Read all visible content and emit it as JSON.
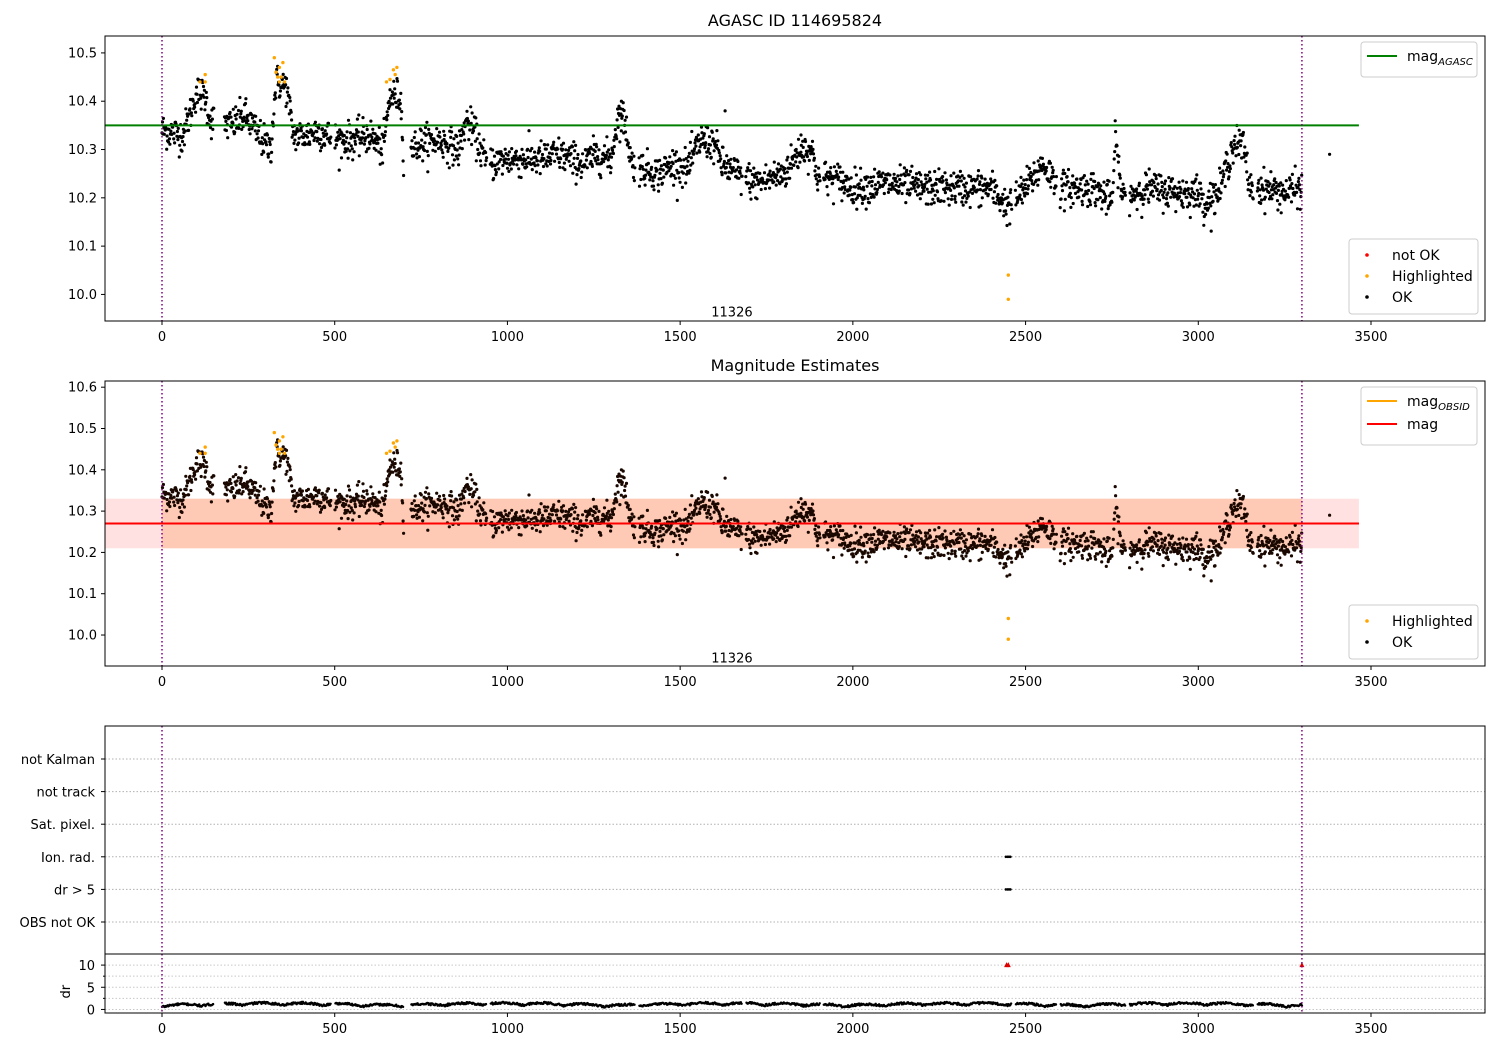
{
  "chart_data": [
    {
      "type": "scatter",
      "title": "AGASC ID 114695824",
      "xlim": [
        -165,
        3830
      ],
      "ylim": [
        9.945,
        10.535
      ],
      "xticks": [
        0,
        500,
        1000,
        1500,
        2000,
        2500,
        3000,
        3500
      ],
      "yticks": [
        10.0,
        10.1,
        10.2,
        10.3,
        10.4,
        10.5
      ],
      "ytick_labels": [
        "10.0",
        "10.1",
        "10.2",
        "10.3",
        "10.4",
        "10.5"
      ],
      "hlines": [
        {
          "name": "mag_AGASC",
          "y": 10.35,
          "color": "#008000",
          "x0": -165,
          "x1": 3465
        }
      ],
      "vlines": [
        0,
        3300
      ],
      "annotation": {
        "text": "11326",
        "x": 1650,
        "y": 9.965
      },
      "legend_top": [
        {
          "label_main": "mag",
          "label_sub": "AGASC",
          "color": "#008000",
          "kind": "line"
        }
      ],
      "legend_bottom": [
        {
          "label": "not OK",
          "color": "#ff0000"
        },
        {
          "label": "Highlighted",
          "color": "#ffa500"
        },
        {
          "label": "OK",
          "color": "#000000"
        }
      ],
      "series": [
        {
          "name": "OK",
          "color": "#000000",
          "trend": [
            [
              0,
              10.34
            ],
            [
              60,
              10.33
            ],
            [
              80,
              10.37
            ],
            [
              100,
              10.42
            ],
            [
              125,
              10.41
            ],
            [
              140,
              10.36
            ],
            [
              200,
              10.35
            ],
            [
              240,
              10.37
            ],
            [
              270,
              10.34
            ],
            [
              300,
              10.31
            ],
            [
              315,
              10.3
            ],
            [
              330,
              10.44
            ],
            [
              360,
              10.43
            ],
            [
              380,
              10.33
            ],
            [
              420,
              10.33
            ],
            [
              450,
              10.34
            ],
            [
              500,
              10.32
            ],
            [
              560,
              10.32
            ],
            [
              600,
              10.33
            ],
            [
              640,
              10.3
            ],
            [
              660,
              10.41
            ],
            [
              690,
              10.41
            ],
            [
              700,
              10.29
            ],
            [
              740,
              10.31
            ],
            [
              800,
              10.32
            ],
            [
              860,
              10.3
            ],
            [
              880,
              10.36
            ],
            [
              900,
              10.34
            ],
            [
              940,
              10.27
            ],
            [
              1000,
              10.28
            ],
            [
              1100,
              10.28
            ],
            [
              1150,
              10.29
            ],
            [
              1220,
              10.27
            ],
            [
              1260,
              10.29
            ],
            [
              1300,
              10.28
            ],
            [
              1320,
              10.37
            ],
            [
              1340,
              10.36
            ],
            [
              1360,
              10.27
            ],
            [
              1400,
              10.26
            ],
            [
              1440,
              10.25
            ],
            [
              1480,
              10.27
            ],
            [
              1520,
              10.26
            ],
            [
              1560,
              10.32
            ],
            [
              1600,
              10.31
            ],
            [
              1620,
              10.27
            ],
            [
              1660,
              10.25
            ],
            [
              1720,
              10.23
            ],
            [
              1800,
              10.25
            ],
            [
              1850,
              10.3
            ],
            [
              1880,
              10.3
            ],
            [
              1900,
              10.24
            ],
            [
              1950,
              10.24
            ],
            [
              2000,
              10.22
            ],
            [
              2100,
              10.23
            ],
            [
              2200,
              10.22
            ],
            [
              2300,
              10.22
            ],
            [
              2400,
              10.22
            ],
            [
              2450,
              10.18
            ],
            [
              2500,
              10.22
            ],
            [
              2550,
              10.27
            ],
            [
              2600,
              10.22
            ],
            [
              2700,
              10.22
            ],
            [
              2750,
              10.19
            ],
            [
              2760,
              10.32
            ],
            [
              2780,
              10.2
            ],
            [
              2850,
              10.22
            ],
            [
              2950,
              10.21
            ],
            [
              3000,
              10.21
            ],
            [
              3020,
              10.19
            ],
            [
              3060,
              10.21
            ],
            [
              3100,
              10.31
            ],
            [
              3130,
              10.31
            ],
            [
              3150,
              10.22
            ],
            [
              3200,
              10.22
            ],
            [
              3250,
              10.21
            ],
            [
              3300,
              10.22
            ]
          ],
          "spread": 0.018,
          "extras": [
            [
              3380,
              10.29
            ],
            [
              1630,
              10.38
            ],
            [
              1330,
              10.4
            ],
            [
              1850,
              10.33
            ]
          ]
        },
        {
          "name": "Highlighted",
          "color": "#ffa500",
          "points": [
            [
              110,
              10.44
            ],
            [
              125,
              10.44
            ],
            [
              125,
              10.455
            ],
            [
              325,
              10.49
            ],
            [
              330,
              10.46
            ],
            [
              335,
              10.45
            ],
            [
              340,
              10.47
            ],
            [
              345,
              10.45
            ],
            [
              350,
              10.48
            ],
            [
              355,
              10.44
            ],
            [
              340,
              10.44
            ],
            [
              650,
              10.44
            ],
            [
              660,
              10.445
            ],
            [
              670,
              10.465
            ],
            [
              680,
              10.47
            ],
            [
              675,
              10.455
            ],
            [
              2450,
              10.04
            ],
            [
              2450,
              9.99
            ]
          ]
        }
      ]
    },
    {
      "type": "scatter",
      "title": "Magnitude Estimates",
      "xlim": [
        -165,
        3830
      ],
      "ylim": [
        9.925,
        10.615
      ],
      "xticks": [
        0,
        500,
        1000,
        1500,
        2000,
        2500,
        3000,
        3500
      ],
      "yticks": [
        10.0,
        10.1,
        10.2,
        10.3,
        10.4,
        10.5,
        10.6
      ],
      "ytick_labels": [
        "10.0",
        "10.1",
        "10.2",
        "10.3",
        "10.4",
        "10.5",
        "10.6"
      ],
      "hlines": [
        {
          "name": "mag",
          "y": 10.27,
          "color": "#ff0000",
          "x0": -165,
          "x1": 3465
        }
      ],
      "band": {
        "y0": 10.21,
        "y1": 10.33,
        "x0": -165,
        "x1": 3465
      },
      "vlines": [
        0,
        3300
      ],
      "annotation": {
        "text": "11326",
        "x": 1650,
        "y": 9.945
      },
      "legend_top": [
        {
          "label_main": "mag",
          "label_sub": "OBSID",
          "color": "#ffa500",
          "kind": "line"
        },
        {
          "label_main": "mag",
          "label_sub": "",
          "color": "#ff0000",
          "kind": "line"
        }
      ],
      "legend_bottom": [
        {
          "label": "Highlighted",
          "color": "#ffa500"
        },
        {
          "label": "OK",
          "color": "#000000"
        }
      ]
    },
    {
      "type": "scatter",
      "title": "",
      "xlim": [
        -165,
        3830
      ],
      "category_labels": [
        "not Kalman",
        "not track",
        "Sat. pixel.",
        "Ion. rad.",
        "dr > 5",
        "OBS not OK"
      ],
      "category_points": [
        {
          "row": "Ion. rad.",
          "x": [
            2443,
            2448,
            2452,
            2456
          ]
        },
        {
          "row": "dr > 5",
          "x": [
            2443,
            2448,
            2452,
            2456
          ]
        }
      ],
      "dr_panel": {
        "ylabel": "dr",
        "yticks": [
          0,
          5,
          10
        ],
        "ylim": [
          -0.8,
          12.5
        ],
        "clipped_x": [
          2445,
          2450,
          3300
        ]
      },
      "xticks": [
        0,
        500,
        1000,
        1500,
        2000,
        2500,
        3000,
        3500
      ],
      "vlines": [
        0,
        3300
      ]
    }
  ]
}
